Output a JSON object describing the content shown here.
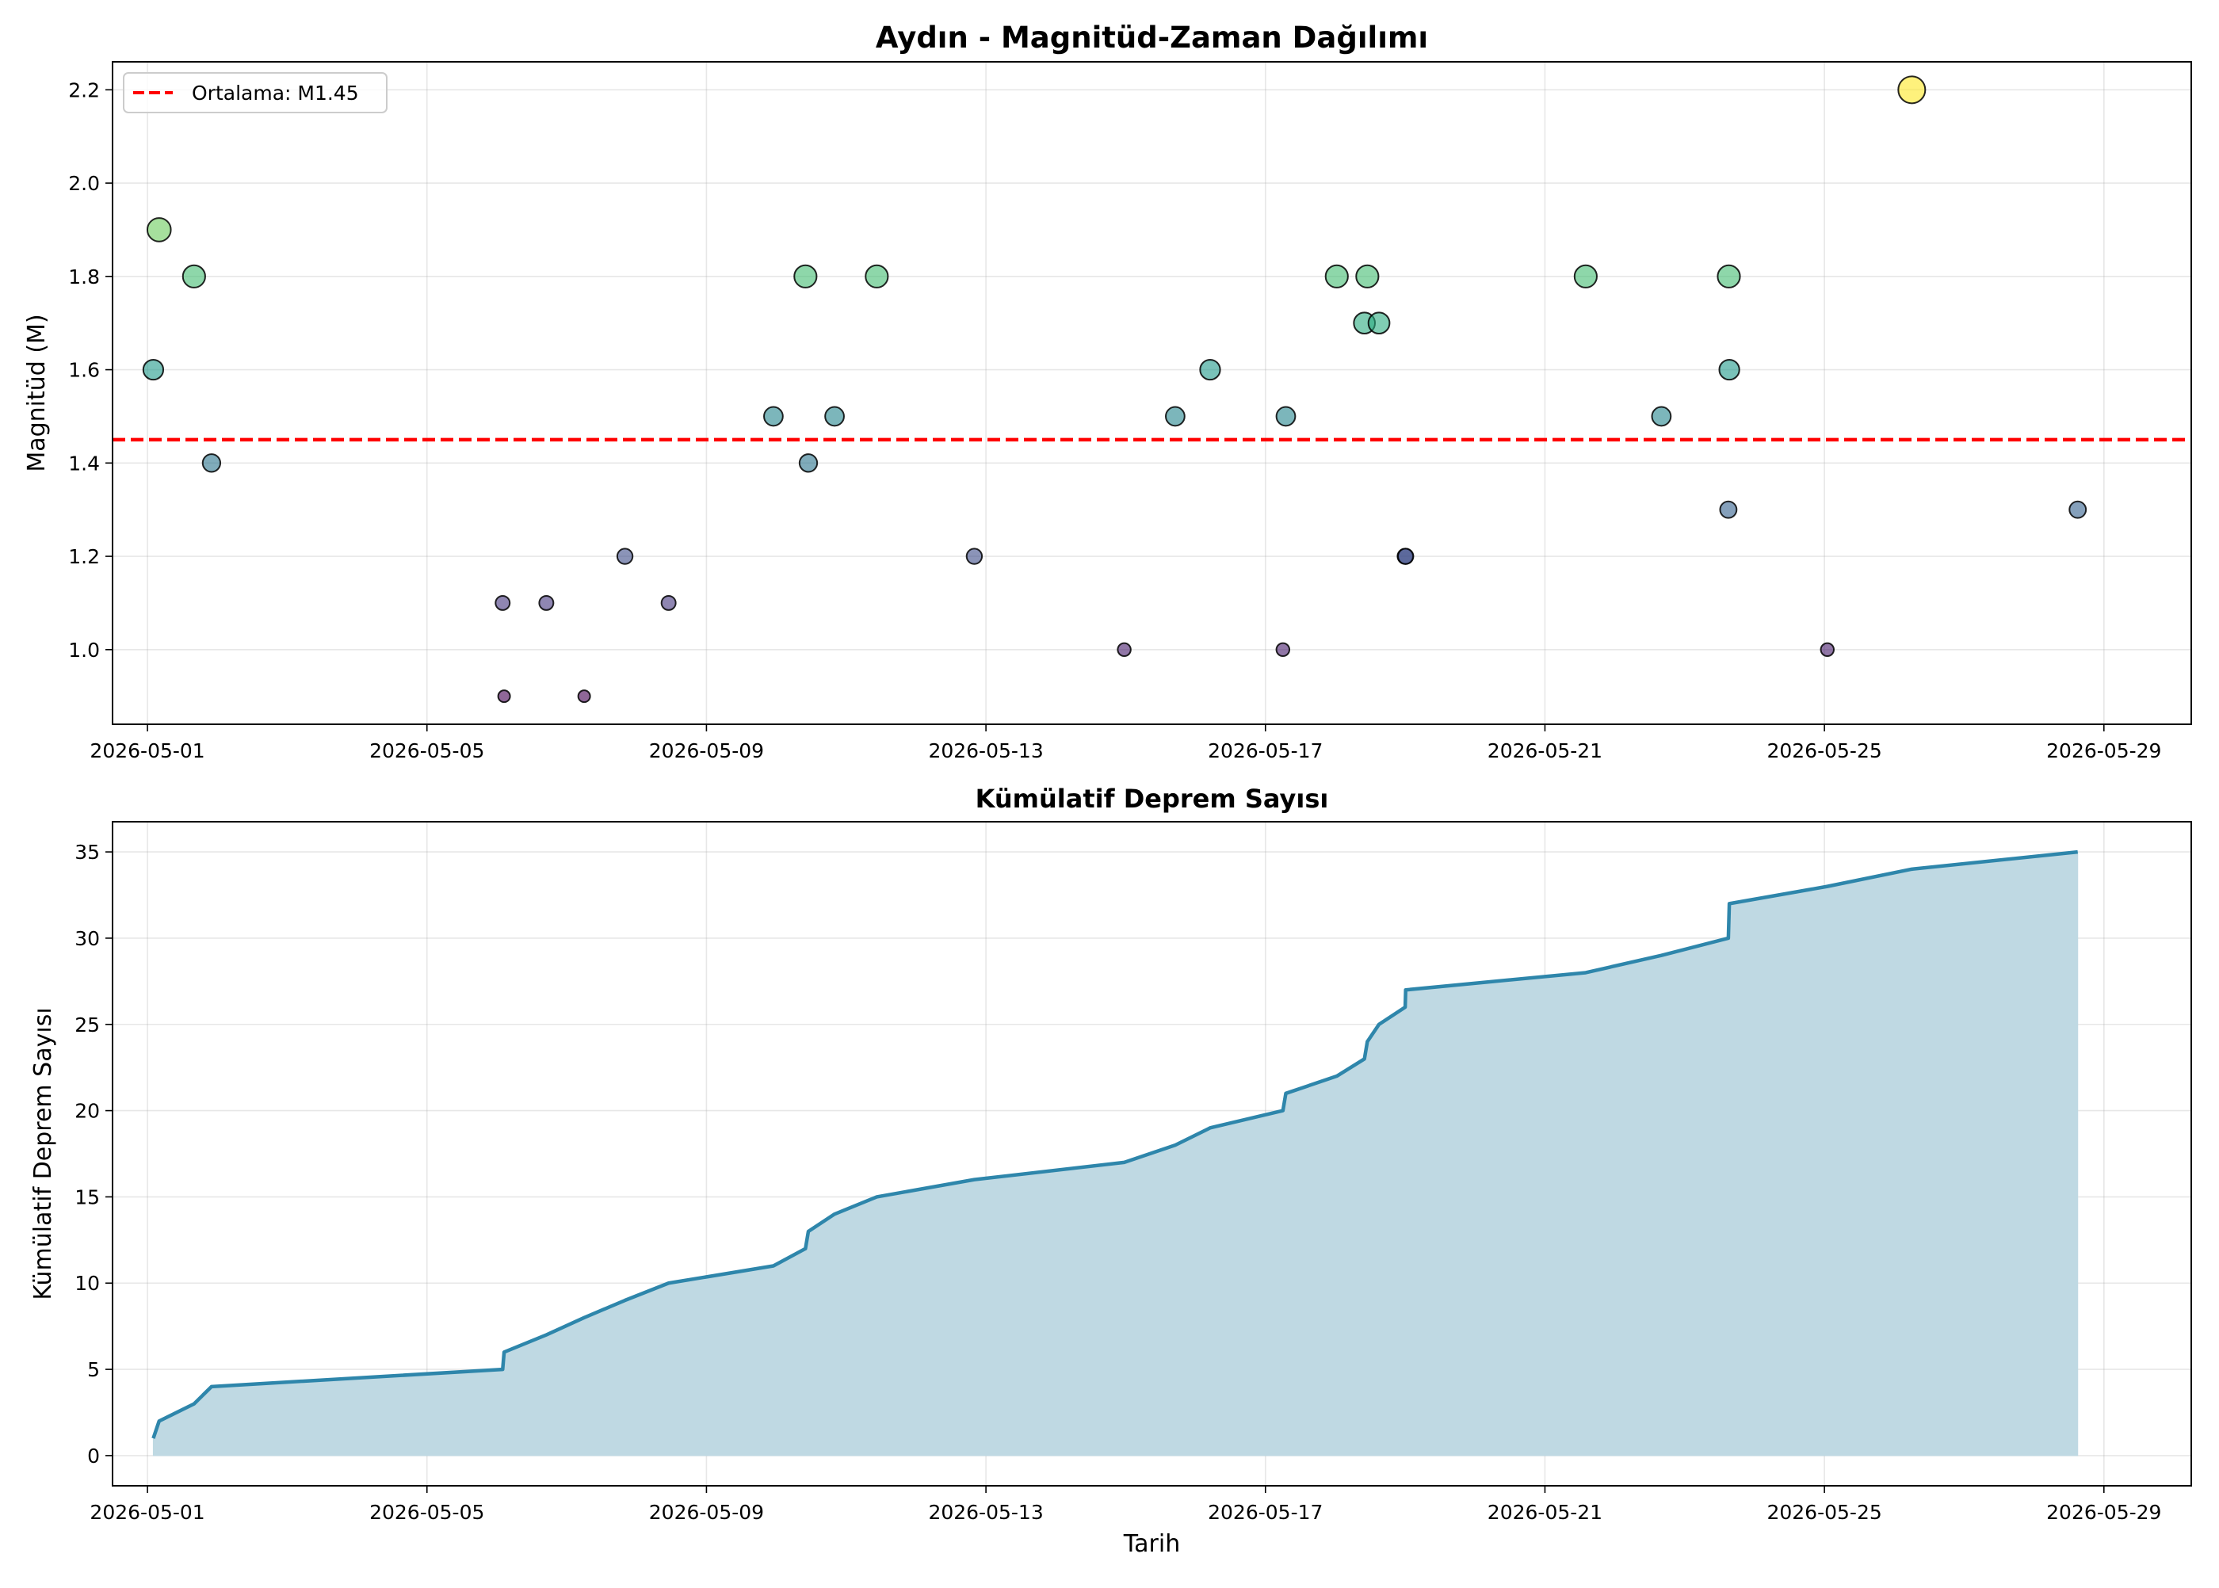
{
  "chart_data": [
    {
      "type": "scatter",
      "title": "Aydın - Magnitüd-Zaman Dağılımı",
      "xlabel": "",
      "ylabel": "Magnitüd (M)",
      "xlim": [
        "2026-04-30T12:00",
        "2026-05-30T06:00"
      ],
      "ylim": [
        0.84,
        2.26
      ],
      "x_ticks": [
        "2026-05-01",
        "2026-05-05",
        "2026-05-09",
        "2026-05-13",
        "2026-05-17",
        "2026-05-21",
        "2026-05-25",
        "2026-05-29"
      ],
      "y_ticks": [
        "1.0",
        "1.2",
        "1.4",
        "1.6",
        "1.8",
        "2.0",
        "2.2"
      ],
      "grid": true,
      "legend_position": "top-left",
      "colormap": "viridis",
      "marker_size_encodes": "magnitude",
      "mean_line": {
        "value": 1.45,
        "label": "Ortalama: M1.45",
        "color": "#ff0000",
        "style": "dashed"
      },
      "points": [
        {
          "x": "2026-05-01T02:00",
          "y": 1.6
        },
        {
          "x": "2026-05-01T04:00",
          "y": 1.9
        },
        {
          "x": "2026-05-01T16:00",
          "y": 1.8
        },
        {
          "x": "2026-05-01T22:00",
          "y": 1.4
        },
        {
          "x": "2026-05-06T02:00",
          "y": 1.1
        },
        {
          "x": "2026-05-06T02:30",
          "y": 0.9
        },
        {
          "x": "2026-05-06T17:00",
          "y": 1.1
        },
        {
          "x": "2026-05-07T06:00",
          "y": 0.9
        },
        {
          "x": "2026-05-07T20:00",
          "y": 1.2
        },
        {
          "x": "2026-05-08T11:00",
          "y": 1.1
        },
        {
          "x": "2026-05-09T23:00",
          "y": 1.5
        },
        {
          "x": "2026-05-10T10:00",
          "y": 1.8
        },
        {
          "x": "2026-05-10T11:00",
          "y": 1.4
        },
        {
          "x": "2026-05-10T20:00",
          "y": 1.5
        },
        {
          "x": "2026-05-11T10:30",
          "y": 1.8
        },
        {
          "x": "2026-05-12T20:00",
          "y": 1.2
        },
        {
          "x": "2026-05-14T23:30",
          "y": 1.0
        },
        {
          "x": "2026-05-15T17:00",
          "y": 1.5
        },
        {
          "x": "2026-05-16T05:00",
          "y": 1.6
        },
        {
          "x": "2026-05-17T06:00",
          "y": 1.0
        },
        {
          "x": "2026-05-17T07:00",
          "y": 1.5
        },
        {
          "x": "2026-05-18T00:30",
          "y": 1.8
        },
        {
          "x": "2026-05-18T10:00",
          "y": 1.7
        },
        {
          "x": "2026-05-18T11:00",
          "y": 1.8
        },
        {
          "x": "2026-05-18T15:00",
          "y": 1.7
        },
        {
          "x": "2026-05-19T00:00",
          "y": 1.2
        },
        {
          "x": "2026-05-19T00:10",
          "y": 1.2
        },
        {
          "x": "2026-05-21T14:00",
          "y": 1.8
        },
        {
          "x": "2026-05-22T16:00",
          "y": 1.5
        },
        {
          "x": "2026-05-23T15:00",
          "y": 1.3
        },
        {
          "x": "2026-05-23T15:10",
          "y": 1.8
        },
        {
          "x": "2026-05-23T15:20",
          "y": 1.6
        },
        {
          "x": "2026-05-25T01:00",
          "y": 1.0
        },
        {
          "x": "2026-05-26T06:00",
          "y": 2.2
        },
        {
          "x": "2026-05-28T15:00",
          "y": 1.3
        }
      ]
    },
    {
      "type": "area",
      "title": "Kümülatif Deprem Sayısı",
      "xlabel": "Tarih",
      "ylabel": "Kümülatif Deprem Sayısı",
      "xlim": [
        "2026-04-30T12:00",
        "2026-05-30T06:00"
      ],
      "ylim": [
        -1.75,
        36.75
      ],
      "x_ticks": [
        "2026-05-01",
        "2026-05-05",
        "2026-05-09",
        "2026-05-13",
        "2026-05-17",
        "2026-05-21",
        "2026-05-25",
        "2026-05-29"
      ],
      "y_ticks": [
        "0",
        "5",
        "10",
        "15",
        "20",
        "25",
        "30",
        "35"
      ],
      "grid": true,
      "line_color": "#2e86ab",
      "fill_color": "#bfd9e3",
      "series": [
        {
          "x": "2026-05-01T02:00",
          "y": 1
        },
        {
          "x": "2026-05-01T04:00",
          "y": 2
        },
        {
          "x": "2026-05-01T16:00",
          "y": 3
        },
        {
          "x": "2026-05-01T22:00",
          "y": 4
        },
        {
          "x": "2026-05-06T02:00",
          "y": 5
        },
        {
          "x": "2026-05-06T02:30",
          "y": 6
        },
        {
          "x": "2026-05-06T17:00",
          "y": 7
        },
        {
          "x": "2026-05-07T06:00",
          "y": 8
        },
        {
          "x": "2026-05-07T20:00",
          "y": 9
        },
        {
          "x": "2026-05-08T11:00",
          "y": 10
        },
        {
          "x": "2026-05-09T23:00",
          "y": 11
        },
        {
          "x": "2026-05-10T10:00",
          "y": 12
        },
        {
          "x": "2026-05-10T11:00",
          "y": 13
        },
        {
          "x": "2026-05-10T20:00",
          "y": 14
        },
        {
          "x": "2026-05-11T10:30",
          "y": 15
        },
        {
          "x": "2026-05-12T20:00",
          "y": 16
        },
        {
          "x": "2026-05-14T23:30",
          "y": 17
        },
        {
          "x": "2026-05-15T17:00",
          "y": 18
        },
        {
          "x": "2026-05-16T05:00",
          "y": 19
        },
        {
          "x": "2026-05-17T06:00",
          "y": 20
        },
        {
          "x": "2026-05-17T07:00",
          "y": 21
        },
        {
          "x": "2026-05-18T00:30",
          "y": 22
        },
        {
          "x": "2026-05-18T10:00",
          "y": 23
        },
        {
          "x": "2026-05-18T11:00",
          "y": 24
        },
        {
          "x": "2026-05-18T15:00",
          "y": 25
        },
        {
          "x": "2026-05-19T00:00",
          "y": 26
        },
        {
          "x": "2026-05-19T00:10",
          "y": 27
        },
        {
          "x": "2026-05-21T14:00",
          "y": 28
        },
        {
          "x": "2026-05-22T16:00",
          "y": 29
        },
        {
          "x": "2026-05-23T15:00",
          "y": 30
        },
        {
          "x": "2026-05-23T15:10",
          "y": 31
        },
        {
          "x": "2026-05-23T15:20",
          "y": 32
        },
        {
          "x": "2026-05-25T01:00",
          "y": 33
        },
        {
          "x": "2026-05-26T06:00",
          "y": 34
        },
        {
          "x": "2026-05-28T15:00",
          "y": 35
        }
      ]
    }
  ]
}
